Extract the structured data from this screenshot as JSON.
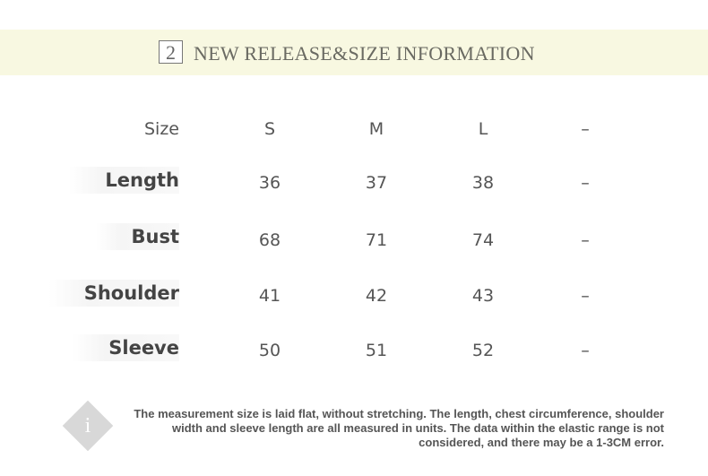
{
  "header": {
    "number": "2",
    "title": "NEW RELEASE&SIZE INFORMATION"
  },
  "table": {
    "columns": [
      "Size",
      "S",
      "M",
      "L",
      "–"
    ],
    "rows": [
      {
        "label": "Length",
        "values": [
          "36",
          "37",
          "38",
          "–"
        ]
      },
      {
        "label": "Bust",
        "values": [
          "68",
          "71",
          "74",
          "–"
        ]
      },
      {
        "label": "Shoulder",
        "values": [
          "41",
          "42",
          "43",
          "–"
        ]
      },
      {
        "label": "Sleeve",
        "values": [
          "50",
          "51",
          "52",
          "–"
        ]
      }
    ]
  },
  "note": {
    "icon": "info-icon",
    "text": "The measurement size is laid flat, without stretching. The length, chest circumference, shoulder width and sleeve length are all measured in units. The data within the elastic range is not considered, and there may be a 1-3CM error."
  }
}
